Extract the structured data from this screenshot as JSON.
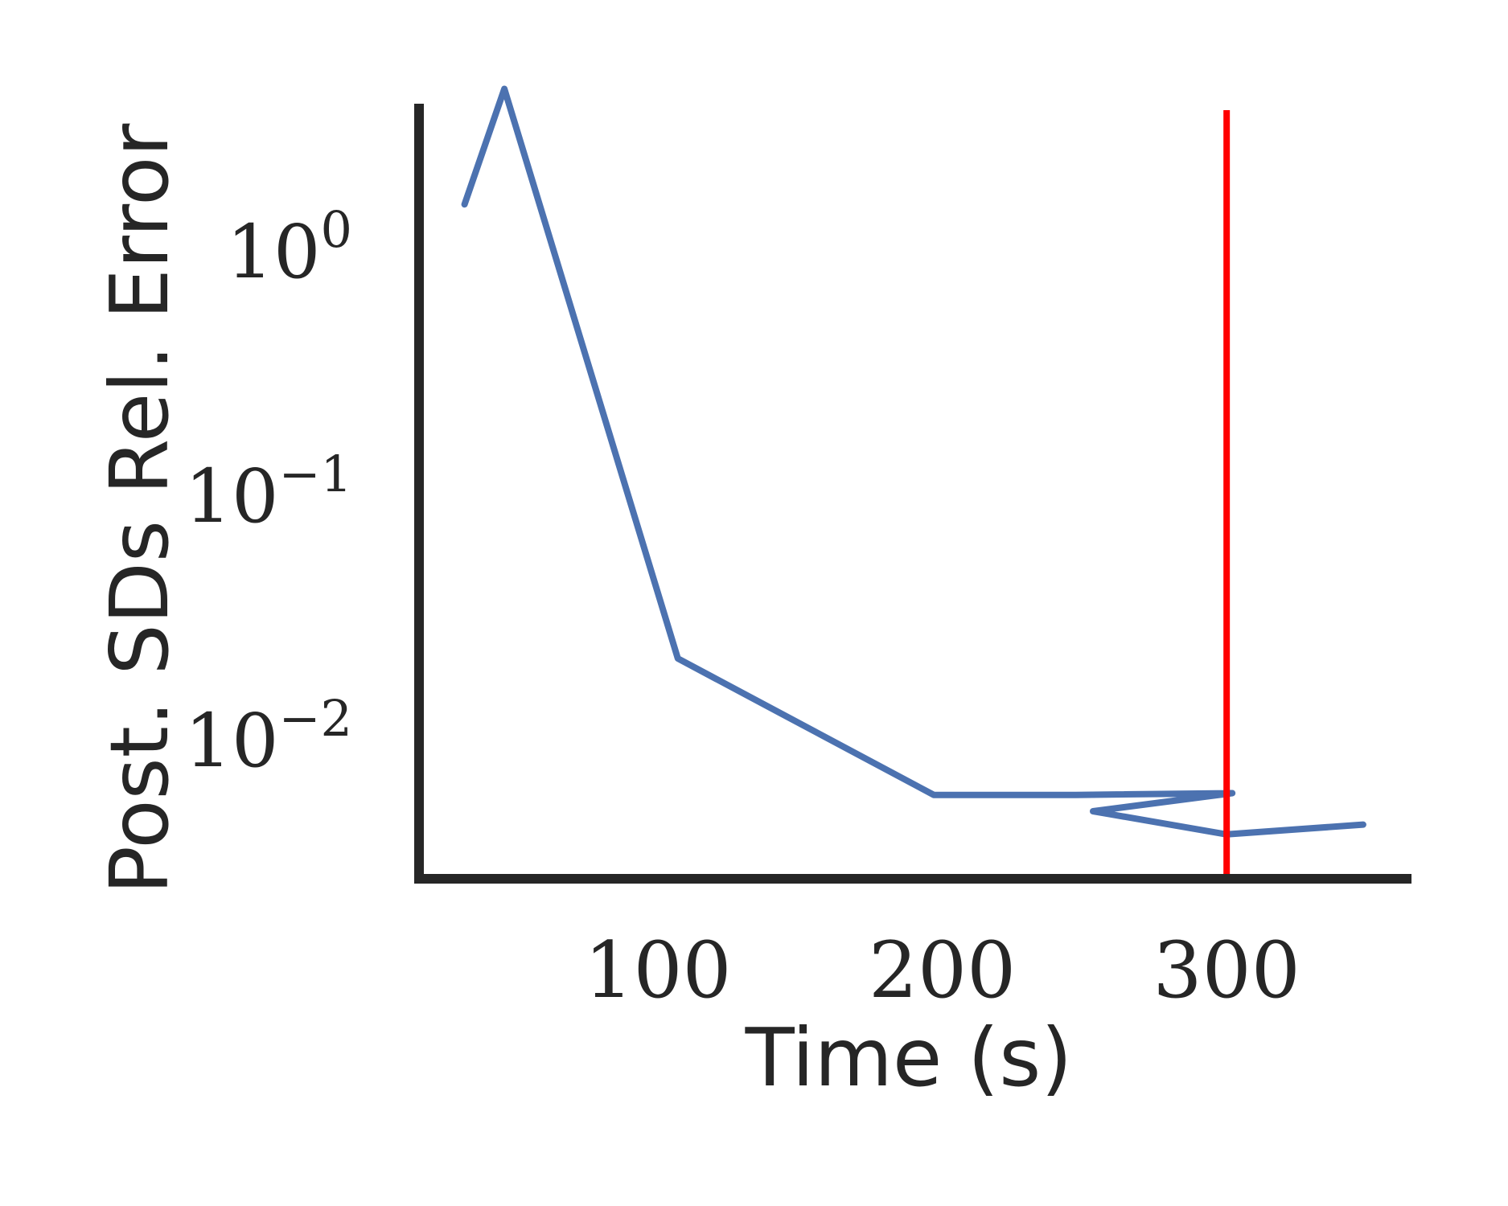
{
  "chart_data": {
    "type": "line",
    "title": "",
    "xlabel": "Time (s)",
    "ylabel": "Post. SDs Rel. Error",
    "xlim": [
      16,
      365
    ],
    "ylim": [
      0.0027,
      4.0
    ],
    "y_scale": "log",
    "grid": false,
    "x_ticks": [
      {
        "value": 100,
        "label": "100"
      },
      {
        "value": 200,
        "label": "200"
      },
      {
        "value": 300,
        "label": "300"
      }
    ],
    "y_ticks": [
      {
        "value": 1,
        "base": "10",
        "exp": "0"
      },
      {
        "value": 0.1,
        "base": "10",
        "exp": "−1"
      },
      {
        "value": 0.01,
        "base": "10",
        "exp": "−2"
      }
    ],
    "series": [
      {
        "color": "#4c72b0",
        "x": [
          32,
          46,
          107,
          197,
          247,
          302,
          253,
          300,
          348
        ],
        "y": [
          1.55,
          4.6,
          0.0215,
          0.00595,
          0.00595,
          0.00605,
          0.0051,
          0.0041,
          0.0045
        ]
      }
    ],
    "vlines": [
      {
        "x": 300,
        "color": "#ff0000"
      }
    ]
  }
}
